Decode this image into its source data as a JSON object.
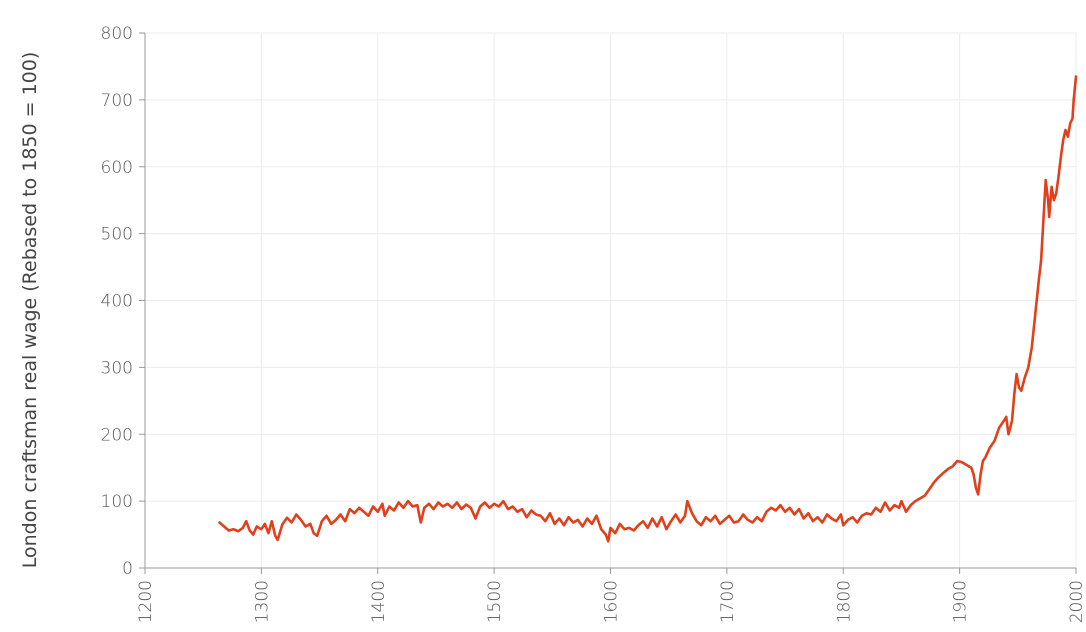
{
  "colors": {
    "line": "#e0401c",
    "grid": "#ececec",
    "axis": "#9a9a9a",
    "text": "#555555"
  },
  "chart_data": {
    "type": "line",
    "title": "",
    "xlabel": "",
    "ylabel": "London craftsman real wage (Rebased to 1850 = 100)",
    "xlim": [
      1200,
      2000
    ],
    "ylim": [
      0,
      800
    ],
    "x_ticks": [
      1200,
      1300,
      1400,
      1500,
      1600,
      1700,
      1800,
      1900,
      2000
    ],
    "y_ticks": [
      0,
      100,
      200,
      300,
      400,
      500,
      600,
      700,
      800
    ],
    "x_tick_labels": [
      "1200",
      "1300",
      "1400",
      "1500",
      "1600",
      "1700",
      "1800",
      "1900",
      "2000"
    ],
    "y_tick_labels": [
      "0",
      "100",
      "200",
      "300",
      "400",
      "500",
      "600",
      "700",
      "800"
    ],
    "grid": true,
    "legend": "none",
    "series": [
      {
        "points": [
          [
            1264,
            68
          ],
          [
            1268,
            62
          ],
          [
            1272,
            56
          ],
          [
            1276,
            58
          ],
          [
            1280,
            55
          ],
          [
            1284,
            60
          ],
          [
            1287,
            70
          ],
          [
            1290,
            56
          ],
          [
            1293,
            50
          ],
          [
            1296,
            62
          ],
          [
            1300,
            58
          ],
          [
            1303,
            66
          ],
          [
            1306,
            52
          ],
          [
            1309,
            70
          ],
          [
            1312,
            48
          ],
          [
            1314,
            42
          ],
          [
            1318,
            65
          ],
          [
            1322,
            75
          ],
          [
            1326,
            68
          ],
          [
            1330,
            80
          ],
          [
            1334,
            72
          ],
          [
            1338,
            62
          ],
          [
            1342,
            66
          ],
          [
            1345,
            52
          ],
          [
            1348,
            48
          ],
          [
            1352,
            70
          ],
          [
            1356,
            78
          ],
          [
            1360,
            66
          ],
          [
            1364,
            72
          ],
          [
            1368,
            80
          ],
          [
            1372,
            70
          ],
          [
            1376,
            88
          ],
          [
            1380,
            82
          ],
          [
            1384,
            90
          ],
          [
            1388,
            84
          ],
          [
            1392,
            78
          ],
          [
            1396,
            92
          ],
          [
            1400,
            84
          ],
          [
            1404,
            96
          ],
          [
            1406,
            78
          ],
          [
            1410,
            92
          ],
          [
            1414,
            86
          ],
          [
            1418,
            98
          ],
          [
            1422,
            90
          ],
          [
            1426,
            100
          ],
          [
            1430,
            92
          ],
          [
            1434,
            94
          ],
          [
            1437,
            68
          ],
          [
            1440,
            90
          ],
          [
            1444,
            96
          ],
          [
            1448,
            88
          ],
          [
            1452,
            98
          ],
          [
            1456,
            92
          ],
          [
            1460,
            96
          ],
          [
            1464,
            90
          ],
          [
            1468,
            98
          ],
          [
            1472,
            88
          ],
          [
            1476,
            95
          ],
          [
            1480,
            90
          ],
          [
            1484,
            74
          ],
          [
            1488,
            92
          ],
          [
            1492,
            98
          ],
          [
            1496,
            90
          ],
          [
            1500,
            96
          ],
          [
            1504,
            92
          ],
          [
            1508,
            100
          ],
          [
            1512,
            88
          ],
          [
            1516,
            92
          ],
          [
            1520,
            84
          ],
          [
            1524,
            88
          ],
          [
            1528,
            76
          ],
          [
            1532,
            86
          ],
          [
            1536,
            80
          ],
          [
            1540,
            78
          ],
          [
            1544,
            70
          ],
          [
            1548,
            82
          ],
          [
            1552,
            66
          ],
          [
            1556,
            74
          ],
          [
            1560,
            64
          ],
          [
            1564,
            76
          ],
          [
            1568,
            68
          ],
          [
            1572,
            72
          ],
          [
            1576,
            62
          ],
          [
            1580,
            74
          ],
          [
            1584,
            66
          ],
          [
            1588,
            78
          ],
          [
            1592,
            58
          ],
          [
            1596,
            50
          ],
          [
            1598,
            40
          ],
          [
            1600,
            60
          ],
          [
            1604,
            52
          ],
          [
            1608,
            66
          ],
          [
            1612,
            58
          ],
          [
            1616,
            60
          ],
          [
            1620,
            56
          ],
          [
            1624,
            64
          ],
          [
            1628,
            70
          ],
          [
            1632,
            60
          ],
          [
            1636,
            74
          ],
          [
            1640,
            62
          ],
          [
            1644,
            76
          ],
          [
            1648,
            58
          ],
          [
            1652,
            70
          ],
          [
            1656,
            80
          ],
          [
            1660,
            68
          ],
          [
            1664,
            78
          ],
          [
            1666,
            100
          ],
          [
            1670,
            82
          ],
          [
            1674,
            70
          ],
          [
            1678,
            64
          ],
          [
            1682,
            76
          ],
          [
            1686,
            70
          ],
          [
            1690,
            78
          ],
          [
            1694,
            66
          ],
          [
            1698,
            72
          ],
          [
            1702,
            78
          ],
          [
            1706,
            68
          ],
          [
            1710,
            70
          ],
          [
            1714,
            80
          ],
          [
            1718,
            72
          ],
          [
            1722,
            68
          ],
          [
            1726,
            76
          ],
          [
            1730,
            70
          ],
          [
            1734,
            84
          ],
          [
            1738,
            90
          ],
          [
            1742,
            86
          ],
          [
            1746,
            94
          ],
          [
            1750,
            84
          ],
          [
            1754,
            90
          ],
          [
            1758,
            80
          ],
          [
            1762,
            88
          ],
          [
            1766,
            74
          ],
          [
            1770,
            82
          ],
          [
            1774,
            70
          ],
          [
            1778,
            76
          ],
          [
            1782,
            68
          ],
          [
            1786,
            80
          ],
          [
            1790,
            74
          ],
          [
            1794,
            70
          ],
          [
            1798,
            80
          ],
          [
            1800,
            64
          ],
          [
            1804,
            72
          ],
          [
            1808,
            76
          ],
          [
            1812,
            68
          ],
          [
            1816,
            78
          ],
          [
            1820,
            82
          ],
          [
            1824,
            80
          ],
          [
            1828,
            90
          ],
          [
            1832,
            84
          ],
          [
            1836,
            98
          ],
          [
            1840,
            86
          ],
          [
            1844,
            94
          ],
          [
            1848,
            90
          ],
          [
            1850,
            100
          ],
          [
            1854,
            84
          ],
          [
            1858,
            94
          ],
          [
            1862,
            100
          ],
          [
            1866,
            104
          ],
          [
            1870,
            108
          ],
          [
            1874,
            118
          ],
          [
            1878,
            128
          ],
          [
            1882,
            136
          ],
          [
            1886,
            142
          ],
          [
            1890,
            148
          ],
          [
            1894,
            152
          ],
          [
            1898,
            160
          ],
          [
            1902,
            158
          ],
          [
            1906,
            154
          ],
          [
            1910,
            150
          ],
          [
            1912,
            140
          ],
          [
            1914,
            120
          ],
          [
            1916,
            110
          ],
          [
            1918,
            140
          ],
          [
            1920,
            160
          ],
          [
            1922,
            165
          ],
          [
            1926,
            180
          ],
          [
            1930,
            190
          ],
          [
            1934,
            210
          ],
          [
            1938,
            220
          ],
          [
            1940,
            226
          ],
          [
            1942,
            200
          ],
          [
            1945,
            220
          ],
          [
            1947,
            260
          ],
          [
            1949,
            290
          ],
          [
            1951,
            270
          ],
          [
            1953,
            265
          ],
          [
            1956,
            285
          ],
          [
            1959,
            300
          ],
          [
            1962,
            330
          ],
          [
            1965,
            380
          ],
          [
            1968,
            430
          ],
          [
            1970,
            460
          ],
          [
            1972,
            520
          ],
          [
            1974,
            580
          ],
          [
            1976,
            550
          ],
          [
            1977,
            525
          ],
          [
            1979,
            570
          ],
          [
            1981,
            550
          ],
          [
            1983,
            560
          ],
          [
            1985,
            585
          ],
          [
            1987,
            615
          ],
          [
            1989,
            640
          ],
          [
            1991,
            655
          ],
          [
            1993,
            645
          ],
          [
            1995,
            665
          ],
          [
            1997,
            672
          ],
          [
            1998,
            700
          ],
          [
            2000,
            735
          ]
        ]
      }
    ]
  }
}
